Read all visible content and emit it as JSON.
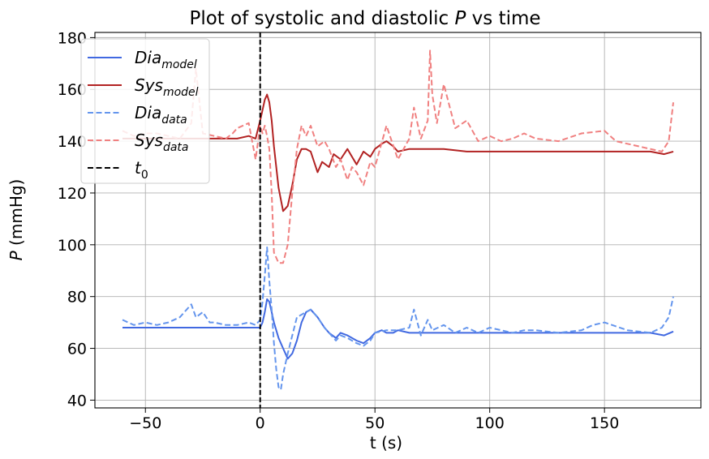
{
  "chart_data": {
    "type": "line",
    "title": {
      "pre": "Plot of systolic and diastolic ",
      "italic": "P",
      "post": " vs time"
    },
    "xlabel": "t (s)",
    "ylabel": {
      "italic": "P",
      "post": " (mmHg)"
    },
    "xlim": [
      -72,
      192
    ],
    "ylim": [
      37,
      182
    ],
    "xticks": [
      -50,
      0,
      50,
      100,
      150
    ],
    "xtick_labels": [
      "−50",
      "0",
      "50",
      "100",
      "150"
    ],
    "yticks": [
      40,
      60,
      80,
      100,
      120,
      140,
      160,
      180
    ],
    "ytick_labels": [
      "40",
      "60",
      "80",
      "100",
      "120",
      "140",
      "160",
      "180"
    ],
    "grid": true,
    "legend_position": "top-left",
    "vline": {
      "x": 0,
      "color": "#000000",
      "dash": "dashed",
      "label": {
        "main": "t",
        "sub": "0",
        "italic": true
      }
    },
    "series": [
      {
        "name": {
          "main": "Dia",
          "sub": "model"
        },
        "color": "#4169e1",
        "dash": "solid",
        "x": [
          -60,
          -50,
          -40,
          -30,
          -20,
          -10,
          -5,
          0,
          1,
          2,
          3,
          4,
          5,
          6,
          8,
          10,
          12,
          14,
          16,
          18,
          20,
          22,
          25,
          28,
          30,
          33,
          35,
          38,
          40,
          42,
          45,
          48,
          50,
          53,
          55,
          58,
          60,
          65,
          70,
          75,
          80,
          90,
          100,
          110,
          120,
          130,
          140,
          150,
          160,
          170,
          176,
          180
        ],
        "y": [
          68,
          68,
          68,
          68,
          68,
          68,
          68,
          68,
          70,
          74,
          79,
          78,
          74,
          70,
          64,
          60,
          56,
          58,
          63,
          70,
          74,
          75,
          72,
          68,
          66,
          64,
          66,
          65,
          64,
          63,
          62,
          64,
          66,
          67,
          66,
          66,
          67,
          66,
          66,
          66,
          66,
          66,
          66,
          66,
          66,
          66,
          66,
          66,
          66,
          66,
          65,
          66.5
        ]
      },
      {
        "name": {
          "main": "Sys",
          "sub": "model"
        },
        "color": "#b22222",
        "dash": "solid",
        "x": [
          -60,
          -50,
          -40,
          -30,
          -20,
          -10,
          -5,
          -2,
          0,
          1,
          2,
          3,
          4,
          5,
          6,
          8,
          10,
          12,
          14,
          16,
          18,
          20,
          22,
          25,
          27,
          30,
          32,
          35,
          38,
          40,
          42,
          45,
          48,
          50,
          53,
          55,
          58,
          60,
          65,
          70,
          75,
          80,
          90,
          100,
          110,
          120,
          130,
          140,
          150,
          160,
          170,
          176,
          180
        ],
        "y": [
          141,
          141,
          141,
          141,
          141,
          141,
          142,
          141,
          148,
          152,
          156,
          158,
          155,
          148,
          138,
          122,
          113,
          115,
          123,
          133,
          137,
          137,
          136,
          128,
          132,
          130,
          135,
          133,
          137,
          134,
          131,
          136,
          134,
          137,
          139,
          140,
          138,
          136,
          137,
          137,
          137,
          137,
          136,
          136,
          136,
          136,
          136,
          136,
          136,
          136,
          136,
          135,
          136
        ]
      },
      {
        "name": {
          "main": "Dia",
          "sub": "data"
        },
        "color": "#6495ed",
        "dash": "dashed",
        "x": [
          -60,
          -55,
          -50,
          -45,
          -40,
          -35,
          -30,
          -28,
          -25,
          -22,
          -20,
          -15,
          -10,
          -5,
          -2,
          0,
          1,
          2,
          3,
          4,
          5,
          6,
          7,
          8,
          9,
          10,
          12,
          14,
          16,
          18,
          20,
          22,
          25,
          28,
          30,
          33,
          35,
          38,
          40,
          42,
          45,
          48,
          50,
          55,
          60,
          65,
          67,
          70,
          73,
          75,
          80,
          85,
          90,
          95,
          100,
          105,
          110,
          115,
          120,
          130,
          140,
          145,
          150,
          160,
          170,
          175,
          178,
          180
        ],
        "y": [
          71,
          69,
          70,
          69,
          70,
          72,
          77,
          72,
          74,
          70,
          70,
          69,
          69,
          70,
          69,
          71,
          78,
          88,
          99,
          86,
          75,
          62,
          52,
          45,
          44,
          50,
          58,
          65,
          72,
          73,
          74,
          75,
          72,
          68,
          66,
          63,
          65,
          64,
          63,
          62,
          61,
          63,
          66,
          67,
          67,
          68,
          75,
          65,
          71,
          67,
          69,
          66,
          68,
          66,
          68,
          67,
          66,
          67,
          67,
          66,
          67,
          69,
          70,
          67,
          66,
          68,
          72,
          80
        ]
      },
      {
        "name": {
          "main": "Sys",
          "sub": "data"
        },
        "color": "#f08080",
        "dash": "dashed",
        "x": [
          -60,
          -55,
          -50,
          -45,
          -40,
          -35,
          -30,
          -28,
          -25,
          -20,
          -15,
          -12,
          -10,
          -5,
          -2,
          0,
          1,
          2,
          3,
          4,
          5,
          6,
          8,
          10,
          12,
          14,
          16,
          18,
          20,
          22,
          25,
          28,
          30,
          33,
          35,
          38,
          40,
          42,
          45,
          48,
          50,
          55,
          60,
          65,
          67,
          70,
          73,
          74,
          75,
          77,
          80,
          85,
          90,
          95,
          100,
          105,
          110,
          115,
          120,
          130,
          140,
          150,
          155,
          160,
          170,
          175,
          178,
          180
        ],
        "y": [
          144,
          142,
          143,
          143,
          142,
          141,
          147,
          168,
          143,
          142,
          141,
          143,
          145,
          147,
          133,
          146,
          143,
          146,
          142,
          137,
          120,
          97,
          93,
          93,
          100,
          120,
          137,
          146,
          142,
          146,
          138,
          140,
          137,
          130,
          133,
          125,
          130,
          128,
          123,
          132,
          130,
          146,
          133,
          141,
          153,
          141,
          148,
          175,
          158,
          147,
          162,
          145,
          148,
          140,
          142,
          140,
          141,
          143,
          141,
          140,
          143,
          144,
          140,
          139,
          137,
          136,
          140,
          155
        ]
      }
    ]
  }
}
